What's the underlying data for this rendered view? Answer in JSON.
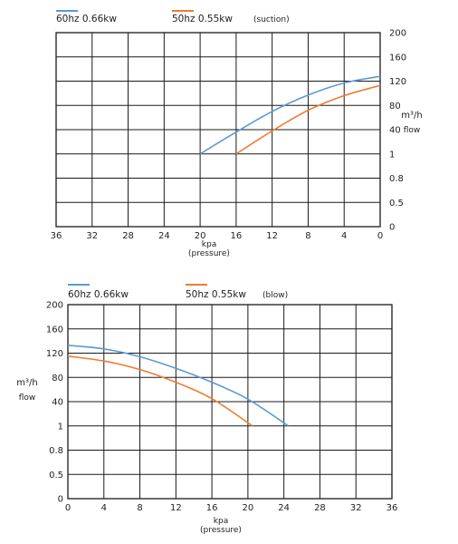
{
  "chart_data": [
    {
      "type": "line",
      "note_label": "(suction)",
      "xlabel": "kpa",
      "xlabel_sub": "(pressure)",
      "ylabel": "m³/h",
      "ylabel_sub": "flow",
      "x_reversed": true,
      "x_ticks": [
        36,
        32,
        28,
        24,
        20,
        16,
        12,
        8,
        4,
        0
      ],
      "y_tick_labels": [
        "200",
        "160",
        "120",
        "80",
        "40",
        "1",
        "0.8",
        "0.5",
        "0"
      ],
      "grid": true,
      "series": [
        {
          "name": "60hz 0.66kw",
          "color": "#5b9bd5",
          "x": [
            20,
            16,
            12,
            8,
            4,
            0
          ],
          "y": [
            1,
            36,
            70,
            97,
            117,
            128
          ]
        },
        {
          "name": "50hz  0.55kw",
          "color": "#ed7d31",
          "x": [
            16,
            12,
            8,
            4,
            0
          ],
          "y": [
            1,
            38,
            72,
            96,
            113
          ]
        }
      ]
    },
    {
      "type": "line",
      "note_label": "(blow)",
      "xlabel": "kpa",
      "xlabel_sub": "(pressure)",
      "ylabel": "m³/h",
      "ylabel_sub": "flow",
      "x_reversed": false,
      "x_ticks": [
        0,
        4,
        8,
        12,
        16,
        20,
        24,
        28,
        32,
        36
      ],
      "y_tick_labels": [
        "200",
        "160",
        "120",
        "80",
        "40",
        "1",
        "0.8",
        "0.5",
        "0"
      ],
      "grid": true,
      "series": [
        {
          "name": "60hz 0.66kw",
          "color": "#5b9bd5",
          "x": [
            0,
            4,
            8,
            12,
            16,
            20,
            24.5
          ],
          "y": [
            133,
            127,
            114,
            95,
            72,
            44,
            1
          ]
        },
        {
          "name": "50hz  0.55kw",
          "color": "#ed7d31",
          "x": [
            0,
            4,
            8,
            12,
            16,
            20.5
          ],
          "y": [
            115,
            107,
            93,
            72,
            45,
            1
          ]
        }
      ]
    }
  ]
}
